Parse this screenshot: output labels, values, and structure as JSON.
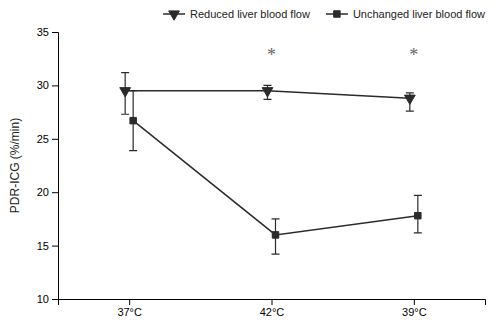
{
  "chart_data": {
    "type": "line",
    "categories": [
      "37°C",
      "42°C",
      "39°C"
    ],
    "ylabel": "PDR-ICG (%/min)",
    "ylim": [
      10,
      35
    ],
    "yticks": [
      10,
      15,
      20,
      25,
      30,
      35
    ],
    "grid": false,
    "legend": "upper right",
    "series": [
      {
        "name": "Reduced liver blood flow",
        "color": "#2b2b2b",
        "marker": "triangle-down",
        "values": [
          29.5,
          29.5,
          28.8
        ],
        "error_upper": [
          1.7,
          0.5,
          0.5
        ],
        "error_lower": [
          2.2,
          0.8,
          1.2
        ]
      },
      {
        "name": "Unchanged liver blood flow",
        "color": "#2b2b2b",
        "marker": "square",
        "values": [
          26.7,
          16.0,
          17.8
        ],
        "error_upper": [
          2.8,
          1.5,
          1.9
        ],
        "error_lower": [
          2.8,
          1.8,
          1.6
        ]
      }
    ],
    "annotations": [
      {
        "text": "*",
        "x": "42°C",
        "y": 32.8,
        "color": "#666666"
      },
      {
        "text": "*",
        "x": "39°C",
        "y": 32.8,
        "color": "#666666"
      }
    ]
  }
}
